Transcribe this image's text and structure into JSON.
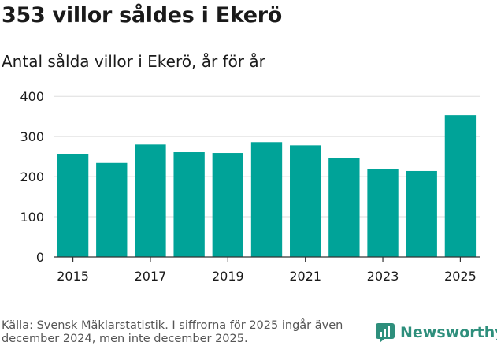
{
  "header": {
    "title": "353 villor såldes i Ekerö",
    "subtitle": "Antal sålda villor i Ekerö, år för år"
  },
  "footer": {
    "source": "Källa: Svensk Mäklarstatistik. I siffrorna för 2025 ingår även december 2024, men inte december 2025.",
    "brand": "Newsworthy",
    "brand_icon": "newsworthy-logo-icon"
  },
  "colors": {
    "bar": "#00a398",
    "grid": "#dddddd",
    "axis": "#333333",
    "brand": "#2e8f7c"
  },
  "chart_data": {
    "type": "bar",
    "title": "353 villor såldes i Ekerö",
    "subtitle": "Antal sålda villor i Ekerö, år för år",
    "xlabel": "",
    "ylabel": "",
    "categories": [
      "2015",
      "2016",
      "2017",
      "2018",
      "2019",
      "2020",
      "2021",
      "2022",
      "2023",
      "2024",
      "2025"
    ],
    "values": [
      257,
      234,
      280,
      261,
      259,
      286,
      278,
      247,
      219,
      214,
      353
    ],
    "xtick_labels": [
      "2015",
      "2017",
      "2019",
      "2021",
      "2023",
      "2025"
    ],
    "yticks": [
      0,
      100,
      200,
      300,
      400
    ],
    "ylim": [
      0,
      420
    ],
    "grid": true,
    "legend": "none"
  }
}
